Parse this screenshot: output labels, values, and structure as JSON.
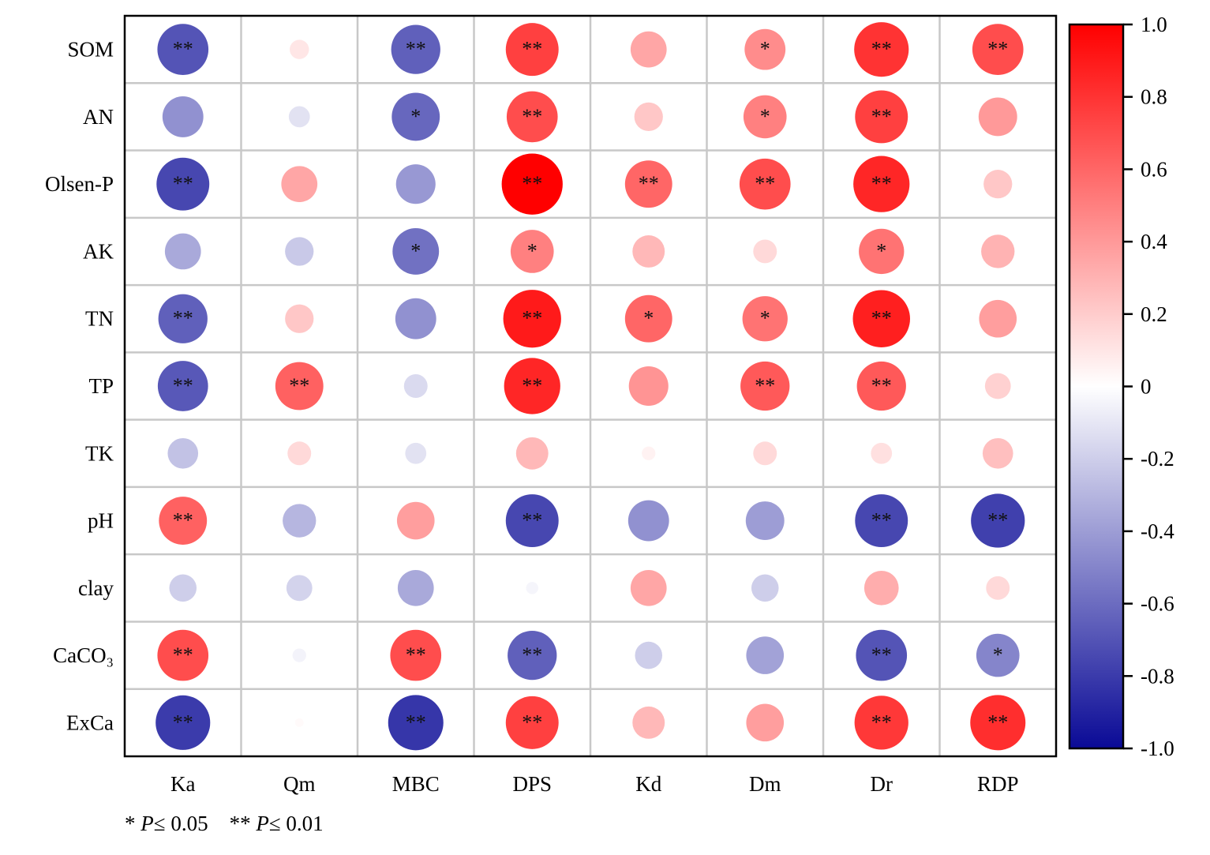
{
  "chart_data": {
    "type": "heatmap",
    "rows": [
      "SOM",
      "AN",
      "Olsen-P",
      "AK",
      "TN",
      "TP",
      "TK",
      "pH",
      "clay",
      "CaCO₃",
      "ExCa"
    ],
    "columns": [
      "Ka",
      "Qm",
      "MBC",
      "DPS",
      "Kd",
      "Dm",
      "Dr",
      "RDP"
    ],
    "values": [
      [
        -0.7,
        0.1,
        -0.65,
        0.75,
        0.35,
        0.45,
        0.8,
        0.7
      ],
      [
        -0.45,
        -0.12,
        -0.62,
        0.7,
        0.22,
        0.5,
        0.75,
        0.4
      ],
      [
        -0.75,
        0.35,
        -0.42,
        1.0,
        0.6,
        0.7,
        0.85,
        0.22
      ],
      [
        -0.35,
        -0.22,
        -0.58,
        0.5,
        0.28,
        0.15,
        0.55,
        0.3
      ],
      [
        -0.65,
        0.22,
        -0.45,
        0.9,
        0.6,
        0.55,
        0.88,
        0.38
      ],
      [
        -0.68,
        0.62,
        -0.15,
        0.85,
        0.42,
        0.65,
        0.65,
        0.18
      ],
      [
        -0.25,
        0.15,
        -0.12,
        0.28,
        0.05,
        0.15,
        0.12,
        0.25
      ],
      [
        0.62,
        -0.3,
        0.38,
        -0.75,
        -0.45,
        -0.4,
        -0.75,
        -0.78
      ],
      [
        -0.2,
        -0.18,
        -0.35,
        -0.04,
        0.35,
        -0.2,
        0.32,
        0.15
      ],
      [
        0.7,
        -0.05,
        0.7,
        -0.65,
        -0.2,
        -0.38,
        -0.7,
        -0.5
      ],
      [
        -0.8,
        0.02,
        -0.82,
        0.75,
        0.28,
        0.38,
        0.78,
        0.82
      ]
    ],
    "significance": [
      [
        "**",
        "",
        "**",
        "**",
        "",
        "*",
        "**",
        "**"
      ],
      [
        "",
        "",
        "*",
        "**",
        "",
        "*",
        "**",
        ""
      ],
      [
        "**",
        "",
        "",
        "**",
        "**",
        "**",
        "**",
        ""
      ],
      [
        "",
        "",
        "*",
        "*",
        "",
        "",
        "*",
        ""
      ],
      [
        "**",
        "",
        "",
        "**",
        "*",
        "*",
        "**",
        ""
      ],
      [
        "**",
        "**",
        "",
        "**",
        "",
        "**",
        "**",
        ""
      ],
      [
        "",
        "",
        "",
        "",
        "",
        "",
        "",
        ""
      ],
      [
        "**",
        "",
        "",
        "**",
        "",
        "",
        "**",
        "**"
      ],
      [
        "",
        "",
        "",
        "",
        "",
        "",
        "",
        ""
      ],
      [
        "**",
        "",
        "**",
        "**",
        "",
        "",
        "**",
        "*"
      ],
      [
        "**",
        "",
        "**",
        "**",
        "",
        "",
        "**",
        "**"
      ]
    ],
    "colorbar": {
      "min": -1.0,
      "max": 1.0,
      "ticks": [
        "1.0",
        "0.8",
        "0.6",
        "0.4",
        "0.2",
        "0",
        "-0.2",
        "-0.4",
        "-0.6",
        "-0.8",
        "-1.0"
      ],
      "colors": {
        "negative": "#0a0a96",
        "zero": "#ffffff",
        "positive": "#ff0000"
      }
    },
    "grid": true
  },
  "footnote": {
    "single_star": "* ",
    "p_italic": "P",
    "single_threshold": "≤ 0.05",
    "double_star": "** ",
    "double_threshold": "≤ 0.01"
  }
}
